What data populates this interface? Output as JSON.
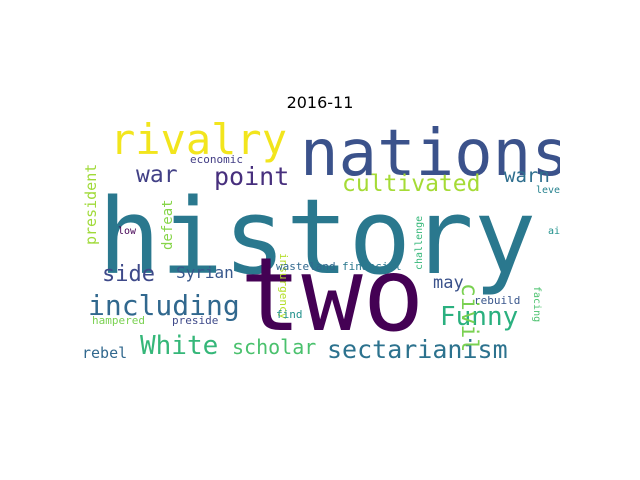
{
  "title": "2016-11",
  "words": [
    {
      "text": "history",
      "color": "#2a788e"
    },
    {
      "text": "two",
      "color": "#440154"
    },
    {
      "text": "nations",
      "color": "#3b528b"
    },
    {
      "text": "rivalry",
      "color": "#f2e51d"
    },
    {
      "text": "including",
      "color": "#31688e"
    },
    {
      "text": "sectarianism",
      "color": "#2c728e"
    },
    {
      "text": "cultivated",
      "color": "#a5db36"
    },
    {
      "text": "White",
      "color": "#35b779"
    },
    {
      "text": "Funny",
      "color": "#2ab07f"
    },
    {
      "text": "future",
      "color": "#2d708e"
    },
    {
      "text": "civil",
      "color": "#7ad151"
    },
    {
      "text": "point",
      "color": "#472f7d"
    },
    {
      "text": "side",
      "color": "#3e4989"
    },
    {
      "text": "war",
      "color": "#424086"
    },
    {
      "text": "warn",
      "color": "#2e6e8e"
    },
    {
      "text": "scholar",
      "color": "#4ac16d"
    },
    {
      "text": "Syrian",
      "color": "#38588c"
    },
    {
      "text": "may",
      "color": "#3b528b"
    },
    {
      "text": "president",
      "color": "#a0da39"
    },
    {
      "text": "defeat",
      "color": "#86d549"
    },
    {
      "text": "rebel",
      "color": "#31688e"
    },
    {
      "text": "economic",
      "color": "#433e85"
    },
    {
      "text": "insurgency",
      "color": "#b5de2b"
    },
    {
      "text": "challenge",
      "color": "#35b779"
    },
    {
      "text": "wasteland",
      "color": "#31688e"
    },
    {
      "text": "financial",
      "color": "#2a788e"
    },
    {
      "text": "level",
      "color": "#26828e"
    },
    {
      "text": "aid",
      "color": "#21918c"
    },
    {
      "text": "low",
      "color": "#440154"
    },
    {
      "text": "facing",
      "color": "#4ac16d"
    },
    {
      "text": "rebuild",
      "color": "#39568c"
    },
    {
      "text": "hampered",
      "color": "#7ad151"
    },
    {
      "text": "preside",
      "color": "#3e4989"
    },
    {
      "text": "find",
      "color": "#21918c"
    }
  ]
}
